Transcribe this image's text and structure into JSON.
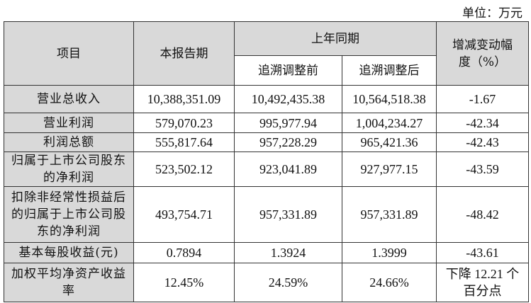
{
  "unit_label": "单位：万元",
  "header": {
    "item": "项目",
    "current": "本报告期",
    "prior": "上年同期",
    "before": "追溯调整前",
    "after": "追溯调整后",
    "change": "增减变动幅度（%）"
  },
  "rows": [
    {
      "label": "营业总收入",
      "current": "10,388,351.09",
      "before": "10,492,435.38",
      "after": "10,564,518.38",
      "change": "-1.67"
    },
    {
      "label": "营业利润",
      "current": "579,070.23",
      "before": "995,977.94",
      "after": "1,004,234.27",
      "change": "-42.34"
    },
    {
      "label": "利润总额",
      "current": "555,817.64",
      "before": "957,228.29",
      "after": "965,421.36",
      "change": "-42.43"
    },
    {
      "label": "归属于上市公司股东的净利润",
      "current": "523,502.12",
      "before": "923,041.89",
      "after": "927,977.15",
      "change": "-43.59"
    },
    {
      "label": "扣除非经常性损益后的归属于上市公司股东的净利润",
      "current": "493,754.71",
      "before": "957,331.89",
      "after": "957,331.89",
      "change": "-48.42"
    },
    {
      "label": "基本每股收益(元)",
      "current": "0.7894",
      "before": "1.3924",
      "after": "1.3999",
      "change": "-43.61"
    },
    {
      "label": "加权平均净资产收益率",
      "current": "12.45%",
      "before": "24.59%",
      "after": "24.66%",
      "change": "下降 12.21 个百分点"
    }
  ]
}
